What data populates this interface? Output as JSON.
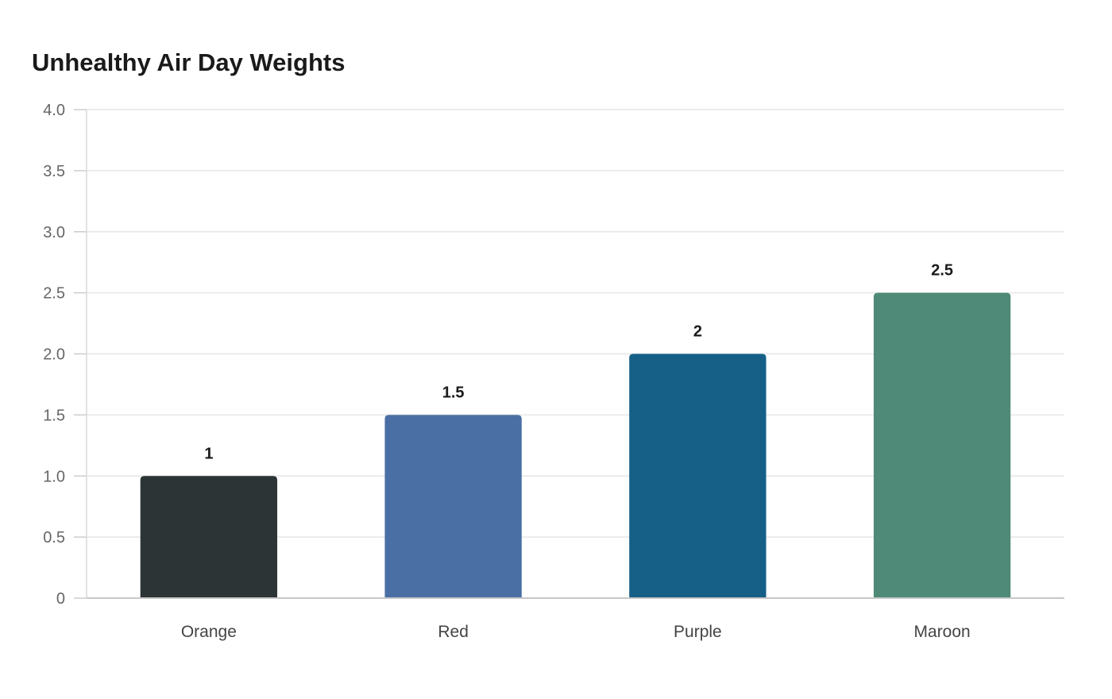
{
  "chart_data": {
    "type": "bar",
    "title": "Unhealthy Air Day Weights",
    "xlabel": "",
    "ylabel": "",
    "categories": [
      "Orange",
      "Red",
      "Purple",
      "Maroon"
    ],
    "values": [
      1,
      1.5,
      2,
      2.5
    ],
    "data_labels": [
      "1",
      "1.5",
      "2",
      "2.5"
    ],
    "bar_colors": [
      "#2d3436",
      "#4a6fa5",
      "#166088",
      "#4f8a78"
    ],
    "ylim": [
      0,
      4
    ],
    "yticks": [
      0,
      0.5,
      1,
      1.5,
      2,
      2.5,
      3,
      3.5,
      4
    ],
    "ytick_labels": [
      "0",
      "0.5",
      "1.0",
      "1.5",
      "2.0",
      "2.5",
      "3.0",
      "3.5",
      "4.0"
    ],
    "grid": true,
    "legend": "none"
  }
}
